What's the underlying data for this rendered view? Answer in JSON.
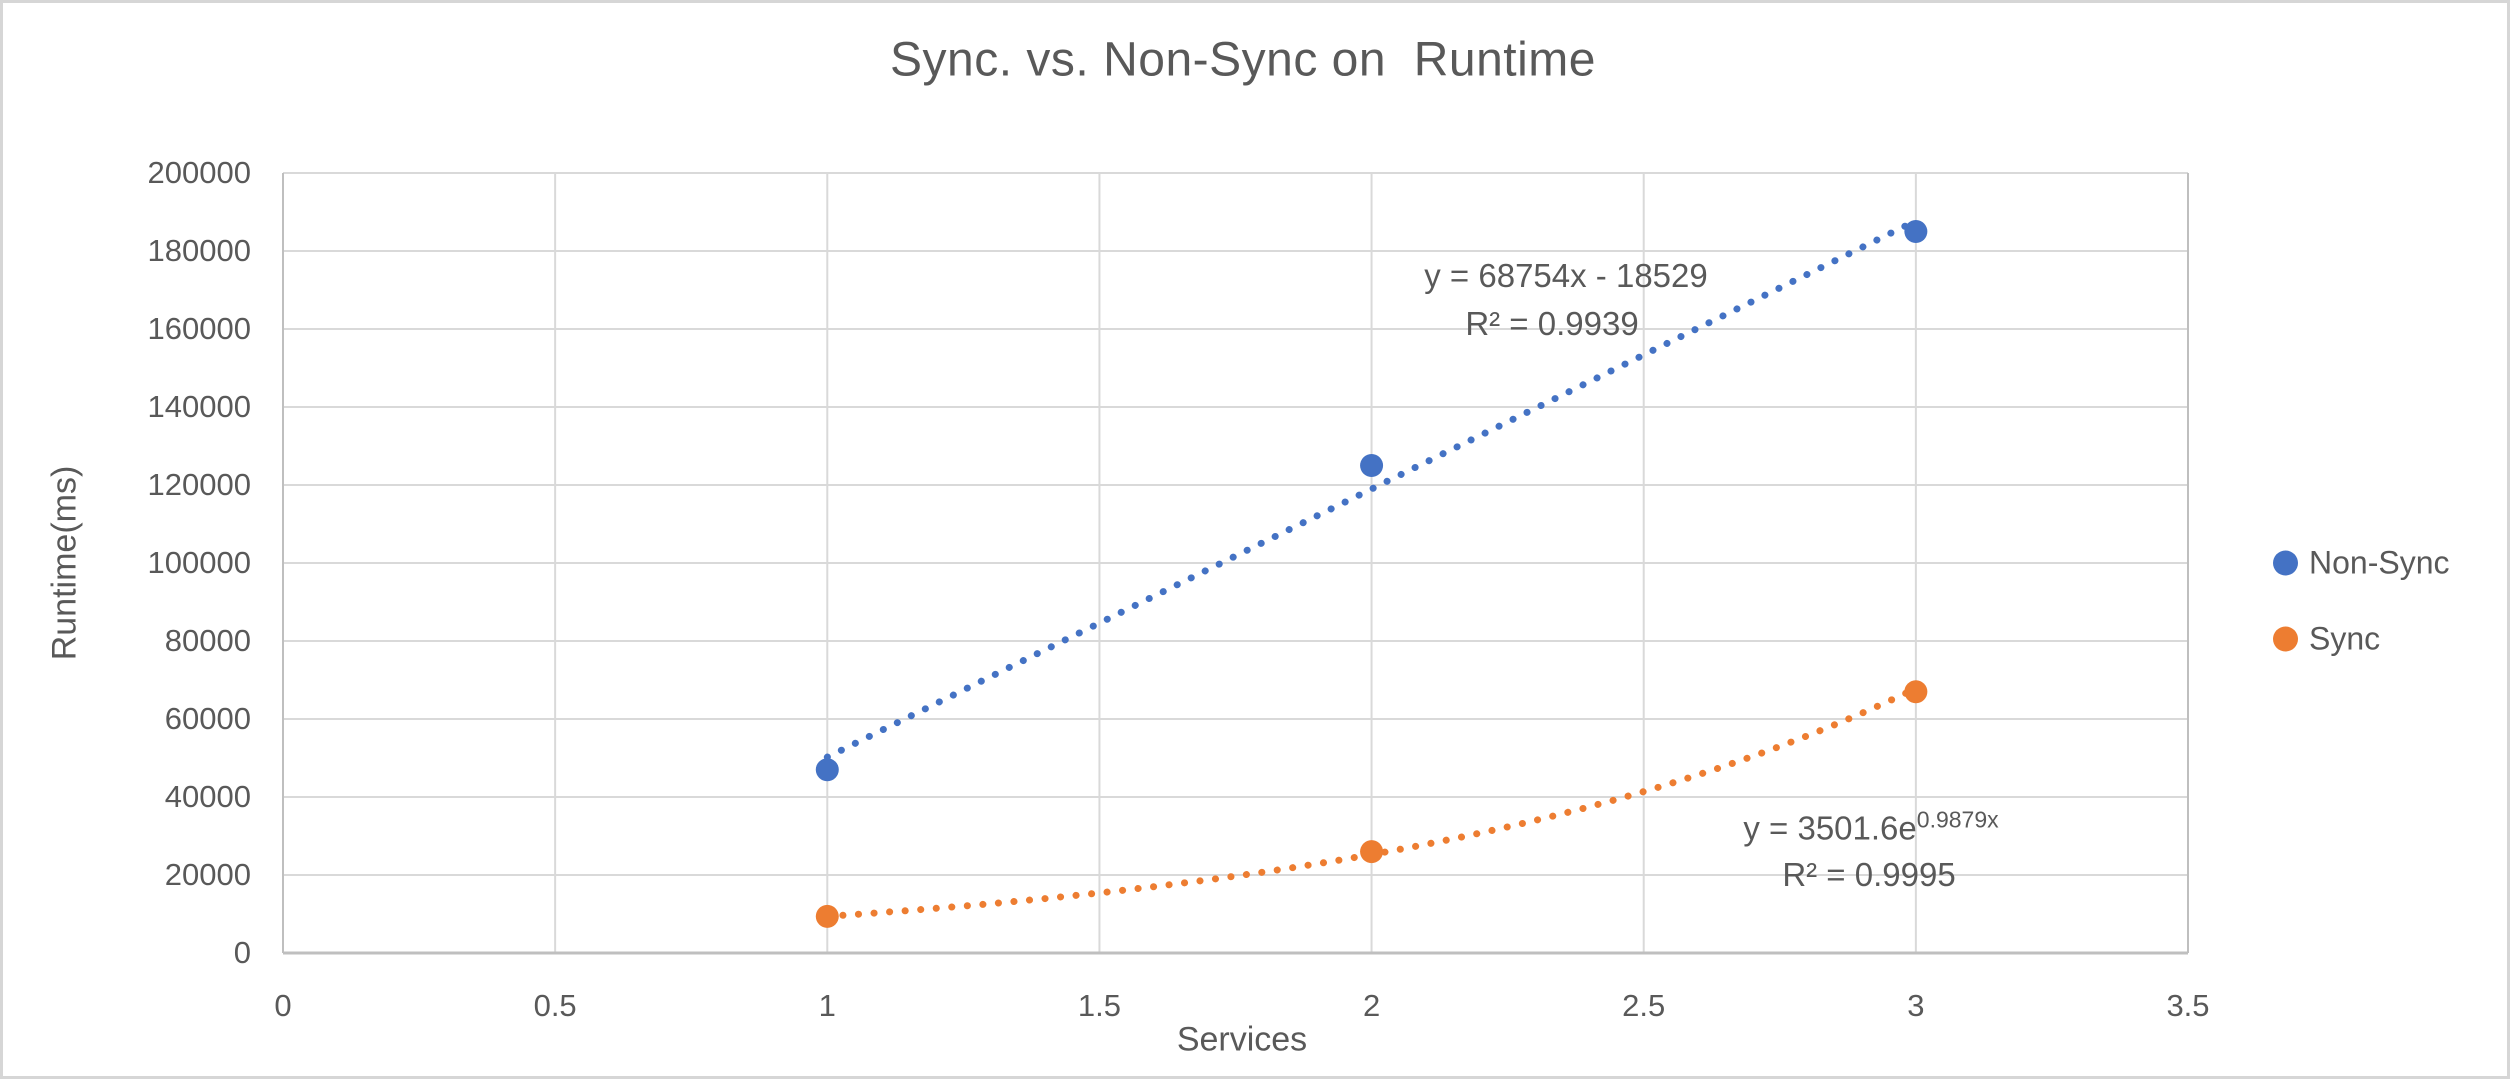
{
  "chart_data": {
    "type": "scatter",
    "title": "Sync. vs. Non-Sync on  Runtime",
    "xlabel": "Services",
    "ylabel": "Runtime(ms)",
    "xlim": [
      0,
      3.5
    ],
    "ylim": [
      0,
      200000
    ],
    "grid": true,
    "legend_position": "right",
    "xticks": [
      0,
      0.5,
      1,
      1.5,
      2,
      2.5,
      3,
      3.5
    ],
    "yticks": [
      0,
      20000,
      40000,
      60000,
      80000,
      100000,
      120000,
      140000,
      160000,
      180000,
      200000
    ],
    "series": [
      {
        "name": "Non-Sync",
        "color": "#4472C4",
        "marker": "circle",
        "x": [
          1,
          2,
          3
        ],
        "y": [
          47000,
          125000,
          185000
        ],
        "trendline": {
          "type": "linear",
          "style": "dotted",
          "slope": 68754,
          "intercept": -18529,
          "range": [
            1,
            3
          ],
          "equation": "y = 68754x - 18529",
          "r2_label": "R² = 0.9939"
        }
      },
      {
        "name": "Sync",
        "color": "#ED7D31",
        "marker": "circle",
        "x": [
          1,
          2,
          3
        ],
        "y": [
          9400,
          26000,
          67000
        ],
        "trendline": {
          "type": "exponential",
          "style": "dotted",
          "coefficient": 3501.6,
          "exponent": 0.9879,
          "range": [
            1,
            3
          ],
          "equation_base": "y = 3501.6e",
          "equation_exponent": "0.9879x",
          "r2_label": "R² = 0.9995"
        }
      }
    ],
    "colors": {
      "text": "#595959",
      "gridline": "#D9D9D9",
      "axis_line": "#BFBFBF",
      "frame_border": "#D6D6D6"
    }
  }
}
